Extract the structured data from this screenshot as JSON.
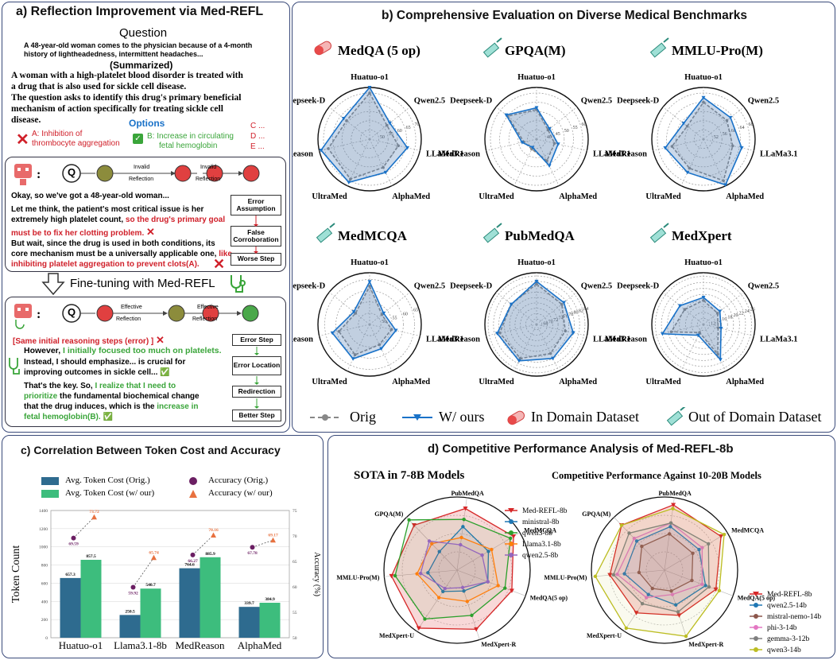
{
  "panel_a": {
    "title": "a) Reflection Improvement via Med-REFL",
    "question_label": "Question",
    "question_text_1": "A 48-year-old woman comes to the physician because of a 4-month",
    "question_text_2": "history of lightheadedness, intermittent headaches...",
    "summarized_label": "(Summarized)",
    "summary_1": "A woman with a high-platelet blood disorder is treated with",
    "summary_2": "a drug that is also used for sickle cell disease.",
    "summary_3": "The question asks to identify this drug's primary beneficial",
    "summary_4": "mechanism of action specifically for treating sickle cell",
    "summary_5": "disease.",
    "options_label": "Options",
    "option_a_1": "A: Inhibition of",
    "option_a_2": "thrombocyte aggregation",
    "option_b_1": "B: Increase in circulating",
    "option_b_2": "fetal hemoglobin",
    "option_c": "C ...",
    "option_d": "D ...",
    "option_e": "E ...",
    "chain1_q": "Q",
    "invalid_label_1": "Invalid",
    "invalid_label_2": "Reflection",
    "r1_line1": "Okay, so we've got a 48-year-old woman...",
    "r1_line2": "Let me think,  the patient's most critical issue is her",
    "r1_line3a": "extremely high platelet count,",
    "r1_line3b": " so the drug's primary goal",
    "r1_line4": "must be to fix her clotting problem.",
    "r1_line5": "But wait, since the drug is used in both conditions, its",
    "r1_line6a": "core mechanism must be a universally applicable one,",
    "r1_line6b": " like",
    "r1_line7": "inhibiting platelet aggregation to prevent clots(A).",
    "error_assumption": "Error Assumption",
    "false_corroboration": "False Corroboration",
    "worse_step": "Worse Step",
    "finetune_label": "Fine-tuning with Med-REFL",
    "effective_label_1": "Effective",
    "effective_label_2": "Reflection",
    "r2_line1": "[Same initial reasoning steps (error) ]",
    "r2_line2a": "However,",
    "r2_line2b": " I initially focused too much on platelets.",
    "r2_line3": "Instead, I should emphasize... is crucial for",
    "r2_line4": "improving outcomes in sickle cell...",
    "r2_line5a": "That's the key. So,",
    "r2_line5b": " I realize that I need to",
    "r2_line6a": "prioritize",
    "r2_line6b": " the fundamental biochemical change",
    "r2_line7a": "that the drug induces, which is the",
    "r2_line7b": " increase in",
    "r2_line8": "fetal hemoglobin(B).",
    "error_step": "Error Step",
    "error_location": "Error Location",
    "redirection": "Redirection",
    "better_step": "Better Step"
  },
  "panel_b": {
    "title": "b)  Comprehensive Evaluation on Diverse Medical Benchmarks",
    "legend_orig": "Orig",
    "legend_ours": "W/ ours",
    "legend_in": "In Domain Dataset",
    "legend_out": "Out of Domain Dataset"
  },
  "panel_c": {
    "title": "c)  Correlation Between Token Cost and Accuracy",
    "legend_tok_orig": "Avg. Token Cost (Orig.)",
    "legend_tok_ours": "Avg. Token Cost (w/ our)",
    "legend_acc_orig": "Accuracy (Orig.)",
    "legend_acc_ours": "Accuracy (w/ our)"
  },
  "panel_d": {
    "title": "d) Competitive Performance Analysis of Med-REFL-8b",
    "left_title": "SOTA in 7-8B Models",
    "right_title": "Competitive Performance Against 10-20B Models"
  },
  "colors": {
    "orig": "#888888",
    "ours": "#1a72c8",
    "bar_orig": "#2e6b8f",
    "bar_ours": "#3dbd7d",
    "acc_orig": "#6b1f63",
    "acc_ours": "#e8713f"
  },
  "chart_data": [
    {
      "type": "radar",
      "title": "MedQA (5 op)",
      "axes": [
        "Huatuo-o1",
        "Qwen2.5",
        "LLaMa3.1",
        "AlphaMed",
        "UltraMed",
        "MedReason",
        "Deepseek-D"
      ],
      "ticks": [
        "50",
        "55",
        "60",
        "65",
        "70"
      ],
      "series": [
        {
          "name": "Orig",
          "values": [
            70,
            57,
            61,
            62,
            69,
            68,
            61
          ]
        },
        {
          "name": "W/ ours",
          "values": [
            73,
            59,
            66,
            65,
            71,
            72,
            63
          ]
        }
      ]
    },
    {
      "type": "radar",
      "title": "GPQA(M)",
      "axes": [
        "Huatuo-o1",
        "Qwen2.5",
        "LLaMa3.1",
        "AlphaMed",
        "UltraMed",
        "MedReason",
        "Deepseek-D"
      ],
      "ticks": [
        "40",
        "45",
        "50",
        "55",
        "60"
      ],
      "series": [
        {
          "name": "Orig",
          "values": [
            51,
            43,
            45,
            48,
            41,
            42,
            55
          ]
        },
        {
          "name": "W/ ours",
          "values": [
            52,
            44,
            47,
            51,
            40,
            43,
            56
          ]
        }
      ]
    },
    {
      "type": "radar",
      "title": "MMLU-Pro(M)",
      "axes": [
        "Huatuo-o1",
        "Qwen2.5",
        "LLaMa3.1",
        "AlphaMed",
        "UltraMed",
        "MedReason",
        "Deepseek-D"
      ],
      "ticks": [
        "52",
        "56",
        "60",
        "64",
        "68"
      ],
      "series": [
        {
          "name": "Orig",
          "values": [
            64,
            61,
            61,
            68,
            62,
            62,
            57
          ]
        },
        {
          "name": "W/ ours",
          "values": [
            66,
            63,
            65,
            70,
            64,
            65,
            59
          ]
        }
      ]
    },
    {
      "type": "radar",
      "title": "MedMCQA",
      "axes": [
        "Huatuo-o1",
        "Qwen2.5",
        "LLaMa3.1",
        "AlphaMed",
        "UltraMed",
        "MedReason",
        "Deepseek-D"
      ],
      "ticks": [
        "50",
        "55",
        "60",
        "65"
      ],
      "series": [
        {
          "name": "Orig",
          "values": [
            62,
            52,
            55,
            55,
            60,
            59,
            53
          ]
        },
        {
          "name": "W/ ours",
          "values": [
            64,
            53,
            57,
            57,
            62,
            62,
            54
          ]
        }
      ]
    },
    {
      "type": "radar",
      "title": "PubMedQA",
      "axes": [
        "Huatuo-o1",
        "Qwen2.5",
        "LLaMa3.1",
        "AlphaMed",
        "UltraMed",
        "MedReason",
        "Deepseek-D"
      ],
      "ticks": [
        "68",
        "70",
        "72",
        "74",
        "76",
        "78",
        "80",
        "82",
        "84"
      ],
      "series": [
        {
          "name": "Orig",
          "values": [
            81,
            78,
            77,
            78,
            80,
            80,
            78
          ]
        },
        {
          "name": "W/ ours",
          "values": [
            82,
            79,
            80,
            80,
            81,
            81,
            78
          ]
        }
      ]
    },
    {
      "type": "radar",
      "title": "MedXpert",
      "axes": [
        "Huatuo-o1",
        "Qwen2.5",
        "LLaMa3.1",
        "AlphaMed",
        "UltraMed",
        "MedReason",
        "Deepseek-D"
      ],
      "ticks": [
        "12",
        "14",
        "16",
        "18",
        "20",
        "22",
        "24",
        "26"
      ],
      "series": [
        {
          "name": "Orig",
          "values": [
            18,
            16,
            15,
            21,
            13,
            21,
            18
          ]
        },
        {
          "name": "W/ ours",
          "values": [
            19,
            17,
            16,
            23,
            14,
            24,
            20
          ]
        }
      ]
    },
    {
      "type": "bar",
      "title": "Correlation Between Token Cost and Accuracy",
      "categories": [
        "Huatuo-o1",
        "Llama3.1-8b",
        "MedReason",
        "AlphaMed"
      ],
      "ylabel": "Token Count",
      "y2label": "Accuracy (%)",
      "ylim": [
        0,
        1400
      ],
      "y2lim": [
        50,
        75
      ],
      "series": [
        {
          "name": "Avg. Token Cost (Orig.)",
          "values": [
            657.3,
            250.5,
            764.6,
            339.7
          ]
        },
        {
          "name": "Avg. Token Cost (w/ our)",
          "values": [
            857.5,
            540.7,
            885.9,
            384.9
          ]
        },
        {
          "name": "Accuracy (Orig.)",
          "values": [
            69.59,
            59.92,
            66.27,
            67.78
          ]
        },
        {
          "name": "Accuracy (w/ our)",
          "values": [
            73.72,
            65.74,
            70.16,
            69.17
          ]
        }
      ]
    },
    {
      "type": "radar",
      "title": "SOTA in 7-8B Models",
      "axes": [
        "MedQA(5 op)",
        "MedMCQA",
        "PubMedQA",
        "GPQA(M)",
        "MMLU-Pro(M)",
        "MedXpert-U",
        "MedXpert-R"
      ],
      "series": [
        {
          "name": "Med-REFL-8b",
          "values": [
            0.8,
            0.9,
            0.85,
            0.85,
            0.9,
            0.95,
            0.85
          ]
        },
        {
          "name": "ministral-8b",
          "values": [
            0.45,
            0.5,
            0.6,
            0.35,
            0.4,
            0.35,
            0.3
          ]
        },
        {
          "name": "qwen3-8b",
          "values": [
            0.7,
            0.85,
            0.7,
            0.95,
            0.85,
            0.8,
            0.65
          ]
        },
        {
          "name": "Llama3.1-8b",
          "values": [
            0.6,
            0.55,
            0.45,
            0.5,
            0.55,
            0.45,
            0.45
          ]
        },
        {
          "name": "qwen2.5-8b",
          "values": [
            0.45,
            0.4,
            0.35,
            0.55,
            0.5,
            0.3,
            0.25
          ]
        }
      ]
    },
    {
      "type": "radar",
      "title": "Competitive Performance Against 10-20B Models",
      "axes": [
        "MedQA(5 op)",
        "MedMCQA",
        "PubMedQA",
        "GPQA(M)",
        "MMLU-Pro(M)",
        "MedXpert-U",
        "MedXpert-R"
      ],
      "series": [
        {
          "name": "Med-REFL-8b",
          "values": [
            0.75,
            0.9,
            0.9,
            0.85,
            0.75,
            0.7,
            0.65
          ]
        },
        {
          "name": "qwen2.5-14b",
          "values": [
            0.6,
            0.55,
            0.6,
            0.55,
            0.55,
            0.4,
            0.5
          ]
        },
        {
          "name": "mistral-nemo-14b",
          "values": [
            0.4,
            0.45,
            0.5,
            0.45,
            0.35,
            0.3,
            0.3
          ]
        },
        {
          "name": "phi-3-14b",
          "values": [
            0.55,
            0.6,
            0.65,
            0.6,
            0.65,
            0.45,
            0.35
          ]
        },
        {
          "name": "gemma-3-12b",
          "values": [
            0.65,
            0.7,
            0.65,
            0.7,
            0.7,
            0.55,
            0.6
          ]
        },
        {
          "name": "qwen3-14b",
          "values": [
            0.8,
            0.95,
            0.85,
            0.85,
            0.95,
            0.95,
            0.95
          ]
        }
      ]
    }
  ]
}
